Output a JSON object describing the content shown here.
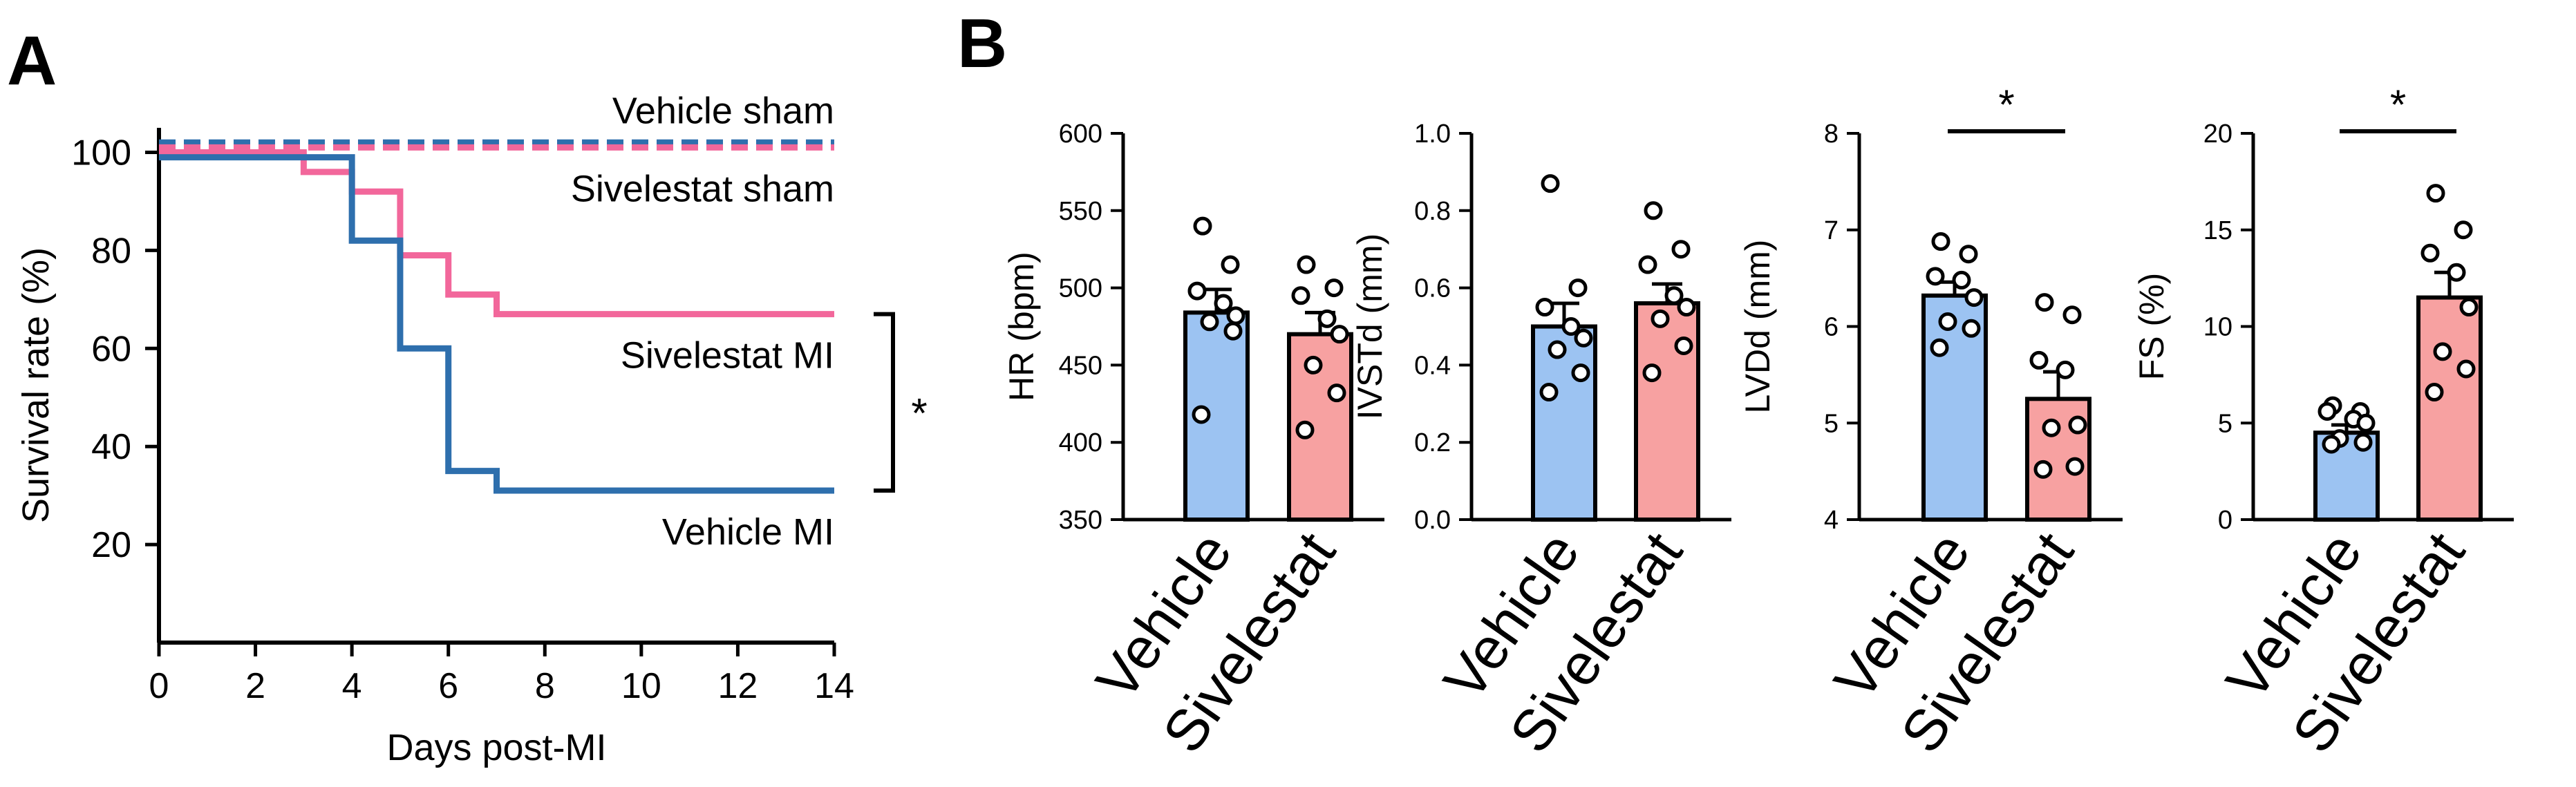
{
  "panels": {
    "a": "A",
    "b": "B"
  },
  "colors": {
    "vehicle_line": "#2e6fad",
    "sivelestat_line": "#f2679b",
    "vehicle_bar": "#9cc3f2",
    "sivelestat_bar": "#f7a1a1",
    "axis": "#000000"
  },
  "chart_data": [
    {
      "type": "line",
      "id": "survival",
      "title": "",
      "xlabel": "Days post-MI",
      "ylabel": "Survival rate (%)",
      "xlim": [
        0,
        14
      ],
      "ylim": [
        0,
        105
      ],
      "xticks": [
        0,
        2,
        4,
        6,
        8,
        10,
        12,
        14
      ],
      "yticks": [
        20,
        40,
        60,
        80,
        100
      ],
      "significance": "*",
      "series": [
        {
          "name": "Vehicle sham",
          "style": "dashed",
          "color_key": "vehicle_line",
          "label_pos": "above",
          "x": [
            0,
            14
          ],
          "y": [
            102,
            102
          ]
        },
        {
          "name": "Sivelestat sham",
          "style": "dashed",
          "color_key": "sivelestat_line",
          "label_pos": "below",
          "x": [
            0,
            14
          ],
          "y": [
            101,
            101
          ]
        },
        {
          "name": "Sivelestat MI",
          "style": "step",
          "color_key": "sivelestat_line",
          "label_pos": "below",
          "x": [
            0,
            3,
            3,
            4,
            4,
            5,
            5,
            6,
            6,
            7,
            7,
            14
          ],
          "y": [
            100,
            100,
            96,
            96,
            92,
            92,
            79,
            79,
            71,
            71,
            67,
            67
          ]
        },
        {
          "name": "Vehicle MI",
          "style": "step",
          "color_key": "vehicle_line",
          "label_pos": "below",
          "x": [
            0,
            4,
            4,
            5,
            5,
            6,
            6,
            7,
            7,
            14
          ],
          "y": [
            99,
            99,
            82,
            82,
            60,
            60,
            35,
            35,
            31,
            31
          ]
        }
      ]
    },
    {
      "type": "bar",
      "id": "hr",
      "ylabel": "HR (bpm)",
      "ylim": [
        350,
        600
      ],
      "yticks": [
        "350",
        "400",
        "450",
        "500",
        "550",
        "600"
      ],
      "categories": [
        "Vehicle",
        "Sivelestat"
      ],
      "values": [
        484,
        470
      ],
      "errors": [
        15,
        14
      ],
      "points": [
        [
          540,
          515,
          498,
          490,
          482,
          478,
          472,
          418
        ],
        [
          515,
          500,
          495,
          480,
          470,
          450,
          432,
          408
        ]
      ],
      "significance": ""
    },
    {
      "type": "bar",
      "id": "ivstd",
      "ylabel": "IVSTd (mm)",
      "ylim": [
        0,
        1.0
      ],
      "yticks": [
        "0.0",
        "0.2",
        "0.4",
        "0.6",
        "0.8",
        "1.0"
      ],
      "categories": [
        "Vehicle",
        "Sivelestat"
      ],
      "values": [
        0.5,
        0.56
      ],
      "errors": [
        0.06,
        0.05
      ],
      "points": [
        [
          0.87,
          0.6,
          0.55,
          0.5,
          0.47,
          0.44,
          0.38,
          0.33
        ],
        [
          0.8,
          0.7,
          0.66,
          0.58,
          0.55,
          0.52,
          0.45,
          0.38
        ]
      ],
      "significance": ""
    },
    {
      "type": "bar",
      "id": "lvdd",
      "ylabel": "LVDd (mm)",
      "ylim": [
        4,
        8
      ],
      "yticks": [
        "4",
        "5",
        "6",
        "7",
        "8"
      ],
      "categories": [
        "Vehicle",
        "Sivelestat"
      ],
      "values": [
        6.32,
        5.25
      ],
      "errors": [
        0.14,
        0.28
      ],
      "points": [
        [
          6.88,
          6.75,
          6.52,
          6.48,
          6.3,
          6.05,
          5.98,
          5.78
        ],
        [
          6.25,
          6.12,
          5.65,
          5.55,
          4.98,
          4.95,
          4.55,
          4.52
        ]
      ],
      "significance": "*"
    },
    {
      "type": "bar",
      "id": "fs",
      "ylabel": "FS (%)",
      "ylim": [
        0,
        20
      ],
      "yticks": [
        "0",
        "5",
        "10",
        "15",
        "20"
      ],
      "categories": [
        "Vehicle",
        "Sivelestat"
      ],
      "values": [
        4.5,
        11.5
      ],
      "errors": [
        0.4,
        1.3
      ],
      "points": [
        [
          5.9,
          5.6,
          5.6,
          5.2,
          5.0,
          4.2,
          4.0,
          3.9
        ],
        [
          16.9,
          15.0,
          13.8,
          12.8,
          11.0,
          8.7,
          7.8,
          6.6
        ]
      ],
      "significance": "*"
    }
  ]
}
